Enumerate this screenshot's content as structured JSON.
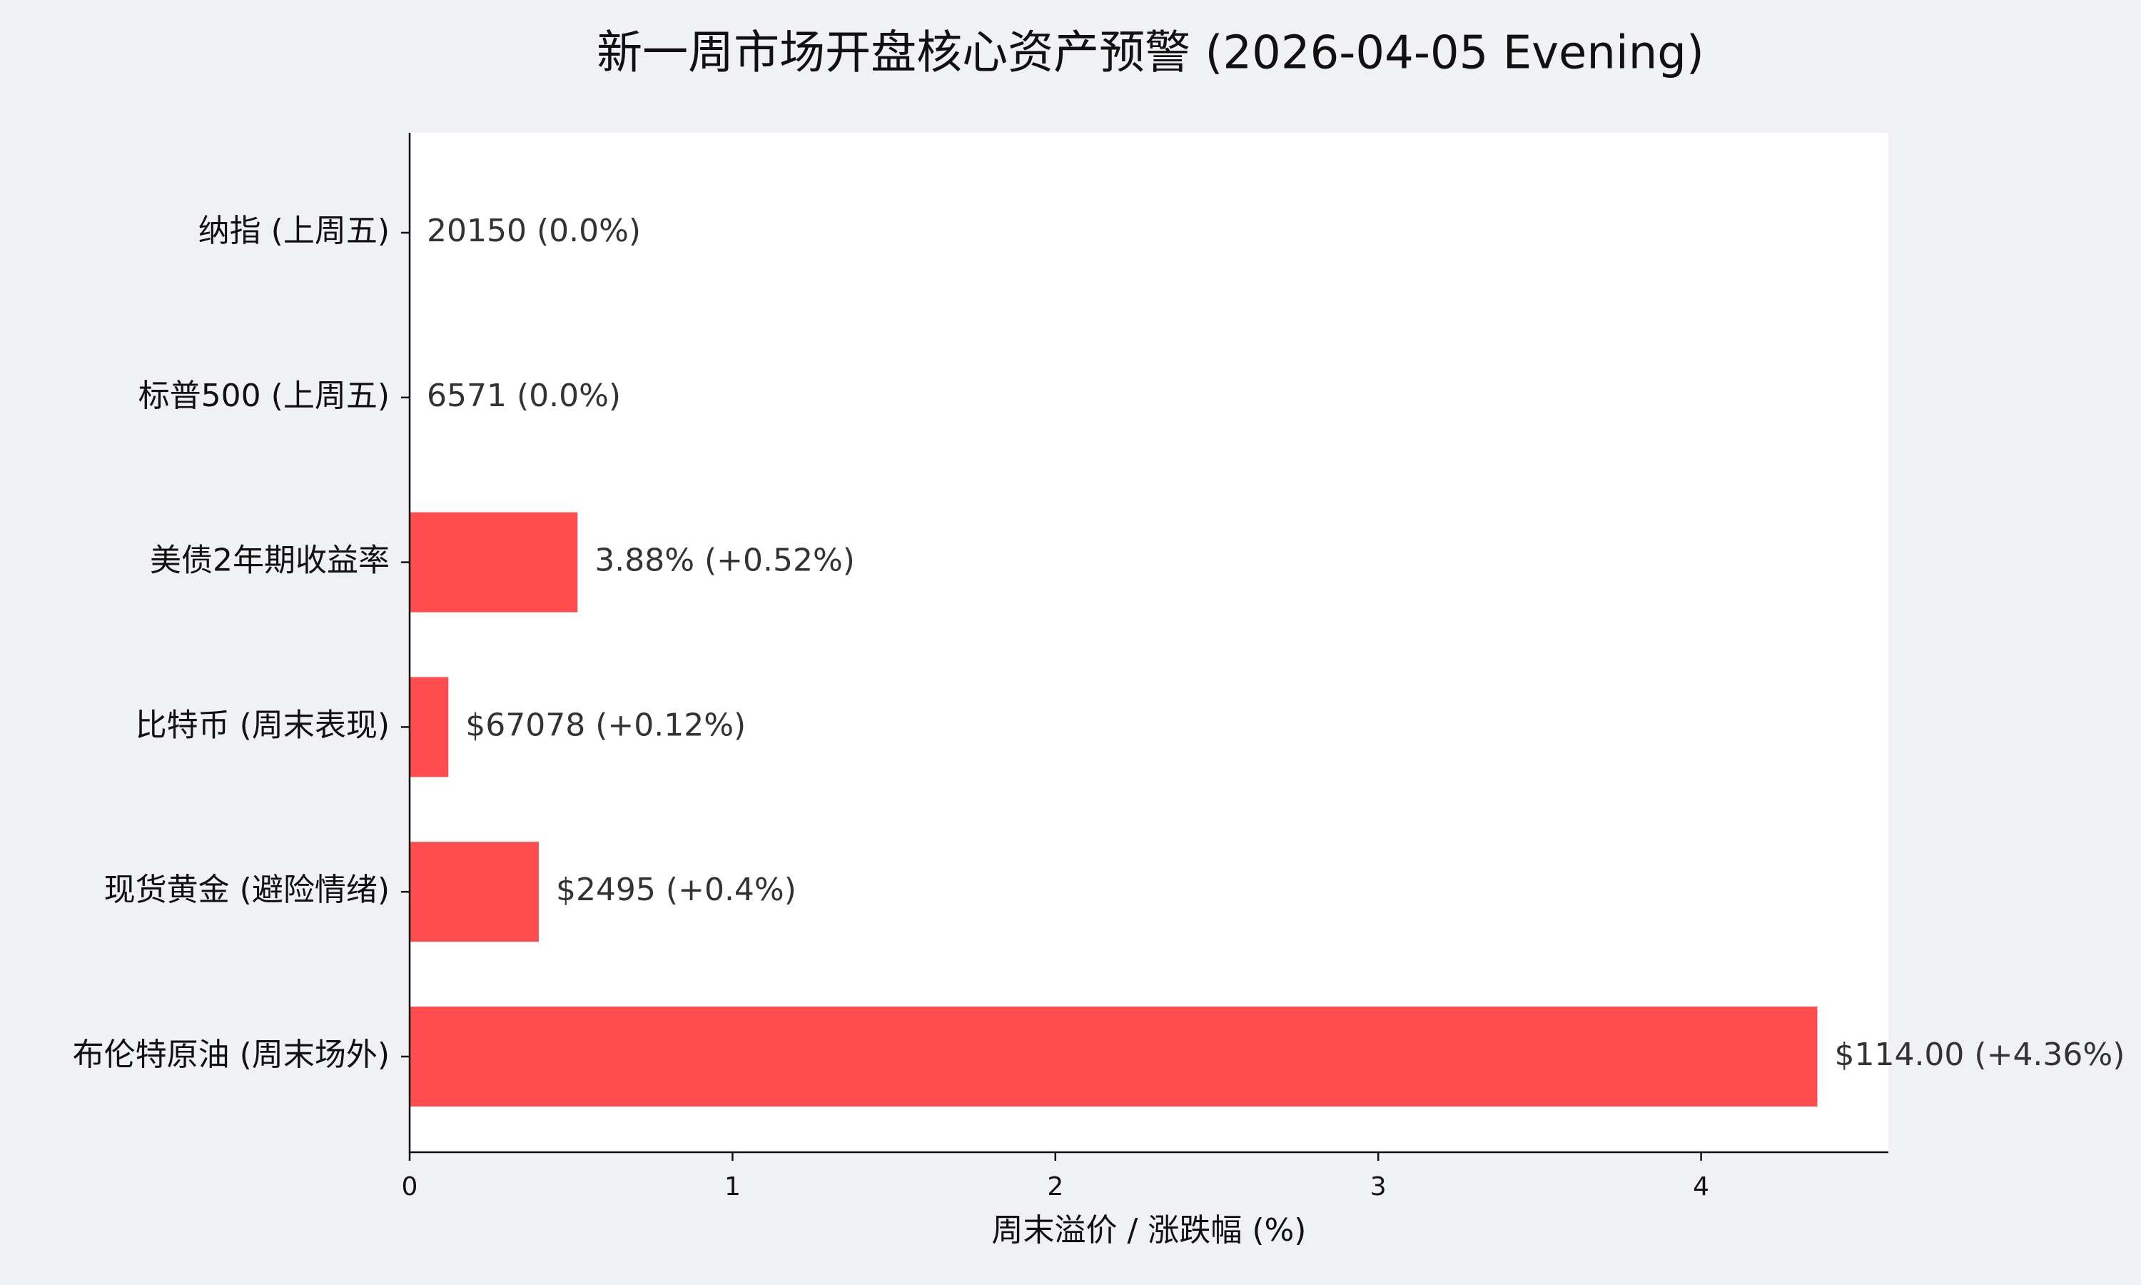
{
  "chart_data": {
    "type": "bar",
    "orientation": "horizontal",
    "title": "新一周市场开盘核心资产预警 (2026-04-05 Evening)",
    "xlabel": "周末溢价 / 涨跌幅 (%)",
    "ylabel": "",
    "xlim": [
      0,
      4.58
    ],
    "xticks": [
      "0",
      "1",
      "2",
      "3",
      "4"
    ],
    "grid": false,
    "legend": "none",
    "categories": [
      "纳指 (上周五)",
      "标普500 (上周五)",
      "美债2年期收益率",
      "比特币 (周末表现)",
      "现货黄金 (避险情绪)",
      "布伦特原油 (周末场外)"
    ],
    "values": [
      0.0,
      0.0,
      0.52,
      0.12,
      0.4,
      4.36
    ],
    "data_labels": [
      "20150 (0.0%)",
      "6571 (0.0%)",
      "3.88% (+0.52%)",
      "$67078 (+0.12%)",
      "$2495 (+0.4%)",
      "$114.00 (+4.36%)"
    ],
    "bar_color": "#ff4d4f",
    "background_color": "#f0f1f4",
    "plot_background_color": "#ffffff"
  }
}
